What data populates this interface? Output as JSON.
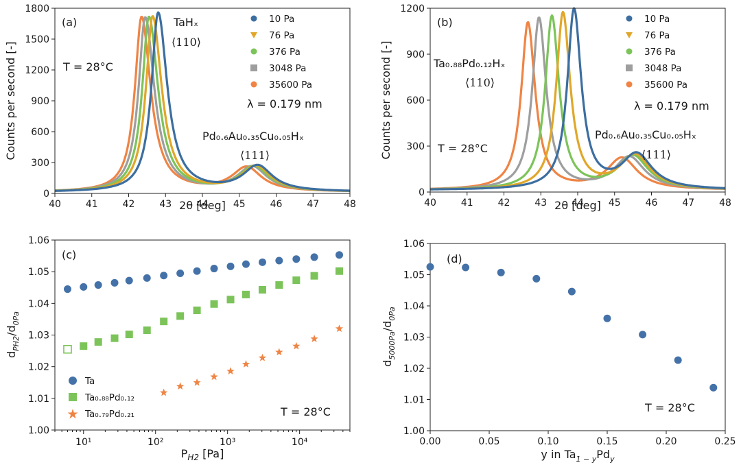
{
  "colors": [
    "#3c6ea0",
    "#e0a72a",
    "#7cc45a",
    "#9e9e9e",
    "#ef8444"
  ],
  "marker_colors": {
    "ta": "#4472a8",
    "tapd12": "#7cc45a",
    "tapd21": "#ef8444"
  },
  "chart_data": [
    {
      "id": "a",
      "type": "line",
      "panel_label": "(a)",
      "xlabel": "2θ [deg]",
      "ylabel": "Counts per second [-]",
      "xlim": [
        40,
        48
      ],
      "ylim": [
        0,
        1800
      ],
      "xticks": [
        "40",
        "41",
        "42",
        "43",
        "44",
        "45",
        "46",
        "47",
        "48"
      ],
      "yticks": [
        "0",
        "300",
        "600",
        "900",
        "1200",
        "1500",
        "1800"
      ],
      "temperature": "T = 28°C",
      "wavelength": "λ = 0.179 nm",
      "peak1": {
        "formula": "TaHₓ",
        "index": "⟨110⟩"
      },
      "peak2": {
        "formula": "Pd₀.₆Au₀.₃₅Cu₀.₀₅Hₓ",
        "index": "⟨111⟩"
      },
      "series": [
        {
          "name": "10 Pa",
          "p1": {
            "x": 42.8,
            "y": 1740,
            "w": 0.22,
            "wr": 0.3
          },
          "p2": {
            "x": 45.5,
            "y": 245,
            "w": 0.48
          }
        },
        {
          "name": "76 Pa",
          "p1": {
            "x": 42.65,
            "y": 1705,
            "w": 0.22,
            "wr": 0.3
          },
          "p2": {
            "x": 45.45,
            "y": 242,
            "w": 0.48
          }
        },
        {
          "name": "376 Pa",
          "p1": {
            "x": 42.55,
            "y": 1700,
            "w": 0.22,
            "wr": 0.3
          },
          "p2": {
            "x": 45.4,
            "y": 240,
            "w": 0.48
          }
        },
        {
          "name": "3048 Pa",
          "p1": {
            "x": 42.45,
            "y": 1695,
            "w": 0.22,
            "wr": 0.3
          },
          "p2": {
            "x": 45.35,
            "y": 238,
            "w": 0.48
          }
        },
        {
          "name": "35600 Pa",
          "p1": {
            "x": 42.35,
            "y": 1700,
            "w": 0.22,
            "wr": 0.3
          },
          "p2": {
            "x": 45.2,
            "y": 232,
            "w": 0.48
          }
        }
      ]
    },
    {
      "id": "b",
      "type": "line",
      "panel_label": "(b)",
      "xlabel": "2θ [deg]",
      "ylabel": "Counts per second [-]",
      "xlim": [
        40,
        48
      ],
      "ylim": [
        0,
        1200
      ],
      "xticks": [
        "40",
        "41",
        "42",
        "43",
        "44",
        "45",
        "46",
        "47",
        "48"
      ],
      "yticks": [
        "0",
        "300",
        "600",
        "900",
        "1200"
      ],
      "temperature": "T = 28°C",
      "wavelength": "λ = 0.179 nm",
      "peak1": {
        "formula": "Ta₀.₈₈Pd₀.₁₂Hₓ",
        "index": "⟨110⟩"
      },
      "peak2": {
        "formula": "Pd₀.₆Au₀.₃₅Cu₀.₀₅Hₓ",
        "index": "⟨111⟩"
      },
      "series": [
        {
          "name": "10 Pa",
          "p1": {
            "x": 43.9,
            "y": 1170,
            "w": 0.22,
            "wr": 0.24
          },
          "p2": {
            "x": 45.6,
            "y": 225,
            "w": 0.5
          }
        },
        {
          "name": "76 Pa",
          "p1": {
            "x": 43.6,
            "y": 1150,
            "w": 0.22,
            "wr": 0.24
          },
          "p2": {
            "x": 45.55,
            "y": 222,
            "w": 0.5
          }
        },
        {
          "name": "376 Pa",
          "p1": {
            "x": 43.3,
            "y": 1130,
            "w": 0.22,
            "wr": 0.24
          },
          "p2": {
            "x": 45.5,
            "y": 218,
            "w": 0.5
          }
        },
        {
          "name": "3048 Pa",
          "p1": {
            "x": 42.95,
            "y": 1120,
            "w": 0.22,
            "wr": 0.24
          },
          "p2": {
            "x": 45.4,
            "y": 212,
            "w": 0.5
          }
        },
        {
          "name": "35600 Pa",
          "p1": {
            "x": 42.65,
            "y": 1090,
            "w": 0.22,
            "wr": 0.24
          },
          "p2": {
            "x": 45.2,
            "y": 205,
            "w": 0.5
          }
        }
      ]
    },
    {
      "id": "c",
      "type": "scatter",
      "panel_label": "(c)",
      "xlabel": "P_H2 [Pa]",
      "ylabel": "d_PH2/d_0Pa",
      "xscale": "log",
      "xlim": [
        4,
        50000
      ],
      "ylim": [
        1.0,
        1.06
      ],
      "xticks": [
        "10¹",
        "10²",
        "10³",
        "10⁴"
      ],
      "yticks": [
        "1.00",
        "1.01",
        "1.02",
        "1.03",
        "1.04",
        "1.05",
        "1.06"
      ],
      "temperature": "T = 28°C",
      "legend": [
        "Ta",
        "Ta₀.₈₈Pd₀.₁₂",
        "Ta₀.₇₉Pd₀.₂₁"
      ],
      "series": [
        {
          "name": "Ta",
          "marker": "circle",
          "x": [
            6,
            10,
            16,
            27,
            43,
            76,
            130,
            220,
            376,
            650,
            1100,
            1800,
            3048,
            5200,
            9000,
            16000,
            35600
          ],
          "y": [
            1.0445,
            1.0452,
            1.0458,
            1.0465,
            1.0472,
            1.048,
            1.0488,
            1.0495,
            1.0502,
            1.051,
            1.0517,
            1.0524,
            1.053,
            1.0535,
            1.054,
            1.0546,
            1.0553
          ]
        },
        {
          "name": "Ta0.88Pd0.12",
          "marker": "square",
          "first_open": true,
          "x": [
            6,
            10,
            16,
            27,
            43,
            76,
            130,
            220,
            376,
            650,
            1100,
            1800,
            3048,
            5200,
            9000,
            16000,
            35600
          ],
          "y": [
            1.0255,
            1.0265,
            1.0278,
            1.029,
            1.0302,
            1.0315,
            1.0343,
            1.036,
            1.0378,
            1.0398,
            1.0412,
            1.0428,
            1.0443,
            1.0458,
            1.0473,
            1.0487,
            1.0502
          ]
        },
        {
          "name": "Ta0.79Pd0.21",
          "marker": "star",
          "x": [
            130,
            220,
            376,
            650,
            1100,
            1800,
            3048,
            5200,
            9000,
            16000,
            35600
          ],
          "y": [
            1.0118,
            1.0138,
            1.015,
            1.0168,
            1.0186,
            1.0208,
            1.0228,
            1.0246,
            1.0265,
            1.0288,
            1.032
          ]
        }
      ]
    },
    {
      "id": "d",
      "type": "scatter",
      "panel_label": "(d)",
      "xlabel": "y in Ta_1−y Pd_y",
      "ylabel": "d_5000Pa/d_0Pa",
      "xlim": [
        0,
        0.25
      ],
      "ylim": [
        1.0,
        1.06
      ],
      "xticks": [
        "0.00",
        "0.05",
        "0.10",
        "0.15",
        "0.20",
        "0.25"
      ],
      "yticks": [
        "1.00",
        "1.01",
        "1.02",
        "1.03",
        "1.04",
        "1.05",
        "1.06"
      ],
      "temperature": "T = 28°C",
      "series": [
        {
          "name": "data",
          "marker": "circle",
          "x": [
            0.0,
            0.03,
            0.06,
            0.09,
            0.12,
            0.15,
            0.18,
            0.21,
            0.24
          ],
          "y": [
            1.0525,
            1.0523,
            1.0507,
            1.0487,
            1.0446,
            1.036,
            1.0308,
            1.0226,
            1.0138
          ]
        }
      ]
    }
  ]
}
